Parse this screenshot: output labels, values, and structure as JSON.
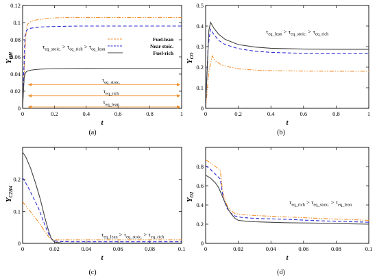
{
  "series_styles": [
    {
      "key": "lean",
      "color": "#f28e2b",
      "dash": "6,2,1.5,2,1.5,2"
    },
    {
      "key": "stoic",
      "color": "#2b2bd6",
      "dash": "5,3"
    },
    {
      "key": "rich",
      "color": "#404040",
      "dash": ""
    }
  ],
  "chart_data": [
    {
      "type": "line",
      "caption": "(a)",
      "xlabel": "t",
      "ylabel": "Y",
      "ylabel_sub": "OH",
      "xlim": [
        0,
        1
      ],
      "ylim": [
        0,
        0.12
      ],
      "xticks": [
        "0",
        "0.2",
        "0.4",
        "0.6",
        "0.8",
        "1"
      ],
      "yticks": [
        "0",
        "0.02",
        "0.04",
        "0.06",
        "0.08",
        "0.1",
        "0.12"
      ],
      "series": [
        {
          "name": "Fuel-lean",
          "style": "lean",
          "x": [
            0,
            0.01,
            0.02,
            0.03,
            0.05,
            0.08,
            0.12,
            0.2,
            0.3,
            0.5,
            0.7,
            1.0
          ],
          "y": [
            0,
            0.04,
            0.085,
            0.098,
            0.101,
            0.103,
            0.104,
            0.1055,
            0.106,
            0.106,
            0.106,
            0.106
          ]
        },
        {
          "name": "Near stoic.",
          "style": "stoic",
          "x": [
            0,
            0.008,
            0.015,
            0.025,
            0.04,
            0.07,
            0.12,
            0.2,
            0.35,
            0.6,
            1.0
          ],
          "y": [
            0,
            0.045,
            0.085,
            0.091,
            0.093,
            0.094,
            0.095,
            0.0955,
            0.096,
            0.096,
            0.096
          ]
        },
        {
          "name": "Fuel-rich",
          "style": "rich",
          "x": [
            0,
            0.005,
            0.01,
            0.015,
            0.02,
            0.03,
            0.05,
            0.08,
            0.12,
            0.2,
            0.3,
            0.5,
            1.0
          ],
          "y": [
            0,
            0.02,
            0.036,
            0.04,
            0.042,
            0.0435,
            0.0445,
            0.0452,
            0.0458,
            0.0462,
            0.0465,
            0.0466,
            0.0466
          ]
        }
      ],
      "legend_location": "upper right",
      "annotations": [
        {
          "key": "ineq",
          "parts": [
            "τ",
            "eq_stoic.",
            " > τ",
            "eq_rich",
            " > τ",
            "eq_lean"
          ]
        }
      ],
      "arrows": [
        {
          "label_parts": [
            "τ",
            "eq_stoic."
          ],
          "y": 0.026
        },
        {
          "label_parts": [
            "τ",
            "eq_rich"
          ],
          "y": 0.013
        },
        {
          "label_parts": [
            "τ",
            "eq_lean"
          ],
          "y": 0.0
        }
      ]
    },
    {
      "type": "line",
      "caption": "(b)",
      "xlabel": "t",
      "ylabel": "Y",
      "ylabel_sub": "CO",
      "xlim": [
        0,
        1
      ],
      "ylim": [
        0,
        0.5
      ],
      "xticks": [
        "0",
        "0.2",
        "0.4",
        "0.6",
        "0.8",
        "1"
      ],
      "yticks": [
        "0",
        "0.1",
        "0.2",
        "0.3",
        "0.4",
        "0.5"
      ],
      "series": [
        {
          "name": "Fuel-lean",
          "style": "lean",
          "x": [
            0,
            0.02,
            0.04,
            0.06,
            0.1,
            0.15,
            0.2,
            0.3,
            0.4,
            0.6,
            0.8,
            1.0
          ],
          "y": [
            0,
            0.18,
            0.255,
            0.23,
            0.21,
            0.2,
            0.192,
            0.186,
            0.183,
            0.181,
            0.18,
            0.18
          ]
        },
        {
          "name": "Near stoic.",
          "style": "stoic",
          "x": [
            0,
            0.015,
            0.03,
            0.05,
            0.08,
            0.12,
            0.2,
            0.3,
            0.4,
            0.6,
            0.8,
            1.0
          ],
          "y": [
            0,
            0.3,
            0.385,
            0.36,
            0.33,
            0.31,
            0.29,
            0.278,
            0.272,
            0.267,
            0.265,
            0.265
          ]
        },
        {
          "name": "Fuel-rich",
          "style": "rich",
          "x": [
            0,
            0.01,
            0.02,
            0.03,
            0.05,
            0.08,
            0.12,
            0.2,
            0.3,
            0.4,
            0.6,
            0.8,
            1.0
          ],
          "y": [
            0,
            0.2,
            0.38,
            0.418,
            0.39,
            0.36,
            0.335,
            0.31,
            0.298,
            0.292,
            0.288,
            0.287,
            0.287
          ]
        }
      ],
      "annotations": [
        {
          "key": "ineq",
          "parts": [
            "τ",
            "eq_lean",
            " > τ",
            "eq_stoic.",
            " > τ",
            "eq_rich"
          ]
        }
      ]
    },
    {
      "type": "line",
      "caption": "(c)",
      "xlabel": "t",
      "ylabel": "Y",
      "ylabel_sub": "C2H4",
      "xlim": [
        0,
        0.1
      ],
      "ylim": [
        0,
        0.3
      ],
      "xticks": [
        "0",
        "0.02",
        "0.04",
        "0.06",
        "0.08",
        "0.1"
      ],
      "yticks": [
        "0",
        "0.1",
        "0.2"
      ],
      "series": [
        {
          "name": "Fuel-lean",
          "style": "lean",
          "x": [
            0,
            0.004,
            0.008,
            0.012,
            0.015,
            0.017,
            0.019,
            0.022,
            0.03,
            0.05,
            0.1
          ],
          "y": [
            0.13,
            0.105,
            0.08,
            0.052,
            0.03,
            0.016,
            0.011,
            0.011,
            0.011,
            0.011,
            0.011
          ]
        },
        {
          "name": "Near stoic.",
          "style": "stoic",
          "x": [
            0,
            0.003,
            0.006,
            0.01,
            0.013,
            0.015,
            0.017,
            0.019,
            0.022,
            0.03,
            0.05,
            0.1
          ],
          "y": [
            0.205,
            0.18,
            0.15,
            0.11,
            0.07,
            0.045,
            0.022,
            0.01,
            0.006,
            0.005,
            0.005,
            0.005
          ]
        },
        {
          "name": "Fuel-rich",
          "style": "rich",
          "x": [
            0,
            0.002,
            0.005,
            0.008,
            0.011,
            0.014,
            0.016,
            0.018,
            0.02,
            0.025,
            0.05,
            0.1
          ],
          "y": [
            0.285,
            0.27,
            0.235,
            0.19,
            0.14,
            0.08,
            0.045,
            0.015,
            0.004,
            0.001,
            0.001,
            0.001
          ]
        }
      ],
      "annotations": [
        {
          "key": "ineq",
          "parts": [
            "τ",
            "eq_lean",
            " > τ",
            "eq_stoic.",
            " > τ",
            "eq_rich"
          ]
        }
      ]
    },
    {
      "type": "line",
      "caption": "(d)",
      "xlabel": "t",
      "ylabel": "Y",
      "ylabel_sub": "O2",
      "xlim": [
        0,
        0.1
      ],
      "ylim": [
        0,
        1
      ],
      "xticks": [
        "0",
        "0.02",
        "0.04",
        "0.06",
        "0.08",
        "0.1"
      ],
      "yticks": [
        "0",
        "0.2",
        "0.4",
        "0.6",
        "0.8"
      ],
      "series": [
        {
          "name": "Fuel-lean",
          "style": "lean",
          "x": [
            0,
            0.003,
            0.006,
            0.009,
            0.01,
            0.011,
            0.013,
            0.015,
            0.018,
            0.022,
            0.03,
            0.05,
            0.07,
            0.1
          ],
          "y": [
            0.87,
            0.84,
            0.8,
            0.76,
            0.6,
            0.5,
            0.4,
            0.35,
            0.31,
            0.3,
            0.29,
            0.275,
            0.26,
            0.24
          ]
        },
        {
          "name": "Near stoic.",
          "style": "stoic",
          "x": [
            0,
            0.003,
            0.006,
            0.009,
            0.01,
            0.011,
            0.013,
            0.015,
            0.018,
            0.022,
            0.03,
            0.05,
            0.07,
            0.1
          ],
          "y": [
            0.81,
            0.77,
            0.72,
            0.67,
            0.55,
            0.46,
            0.37,
            0.32,
            0.285,
            0.27,
            0.26,
            0.25,
            0.235,
            0.22
          ]
        },
        {
          "name": "Fuel-rich",
          "style": "rich",
          "x": [
            0,
            0.003,
            0.006,
            0.008,
            0.01,
            0.012,
            0.014,
            0.016,
            0.018,
            0.02,
            0.025,
            0.03,
            0.05,
            0.07,
            0.1
          ],
          "y": [
            0.71,
            0.68,
            0.63,
            0.58,
            0.5,
            0.42,
            0.35,
            0.3,
            0.26,
            0.24,
            0.23,
            0.225,
            0.215,
            0.21,
            0.2
          ]
        }
      ],
      "annotations": [
        {
          "key": "ineq",
          "parts": [
            "τ",
            "eq_rich",
            " > τ",
            "eq_stoic.",
            " > τ",
            "eq_lean"
          ]
        }
      ]
    }
  ]
}
